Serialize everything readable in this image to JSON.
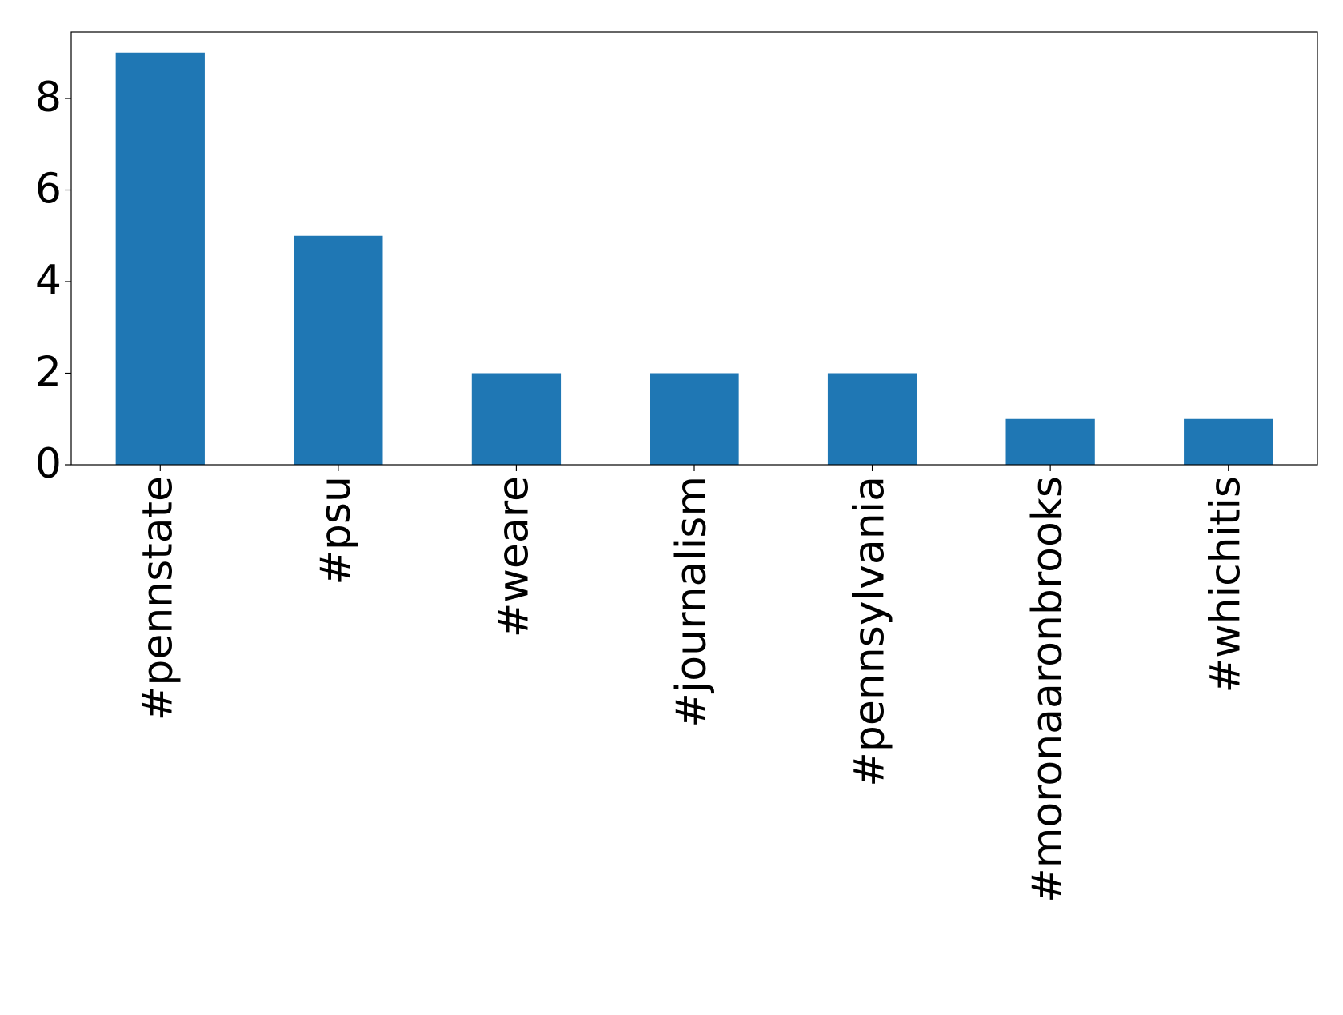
{
  "chart_data": {
    "type": "bar",
    "categories": [
      "#pennstate",
      "#psu",
      "#weare",
      "#journalism",
      "#pennsylvania",
      "#moronaaronbrooks",
      "#whichitis"
    ],
    "values": [
      9,
      5,
      2,
      2,
      2,
      1,
      1
    ],
    "color": "#1f77b4",
    "ylim": [
      0,
      9.45
    ],
    "yticks": [
      0,
      2,
      4,
      6,
      8
    ],
    "grid": false
  }
}
